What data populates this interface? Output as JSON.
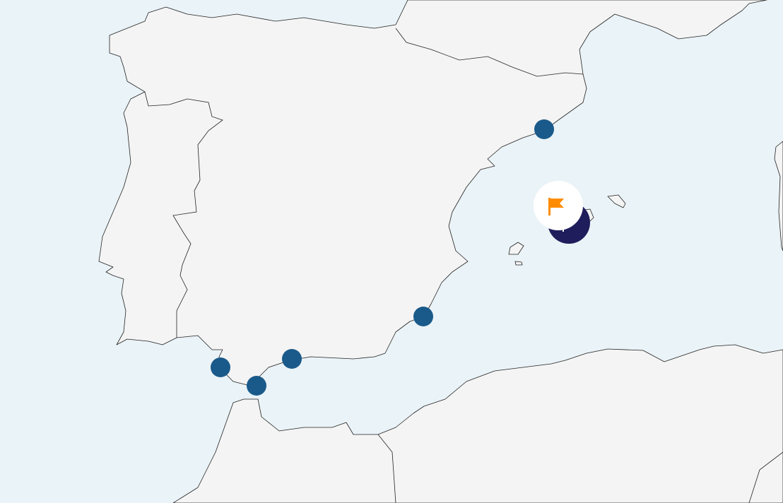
{
  "map": {
    "colors": {
      "sea": "#eaf3f7",
      "land": "#f4f4f4",
      "marker": "#1a5a8a",
      "cluster": "#201d5c",
      "flag": "#ff8c00"
    },
    "markers": [
      {
        "id": "marker-barcelona"
      },
      {
        "id": "marker-valencia-coast"
      },
      {
        "id": "marker-malaga"
      },
      {
        "id": "marker-gibraltar"
      },
      {
        "id": "marker-tarifa"
      }
    ],
    "selected_marker": {
      "icon": "flag-icon"
    }
  }
}
